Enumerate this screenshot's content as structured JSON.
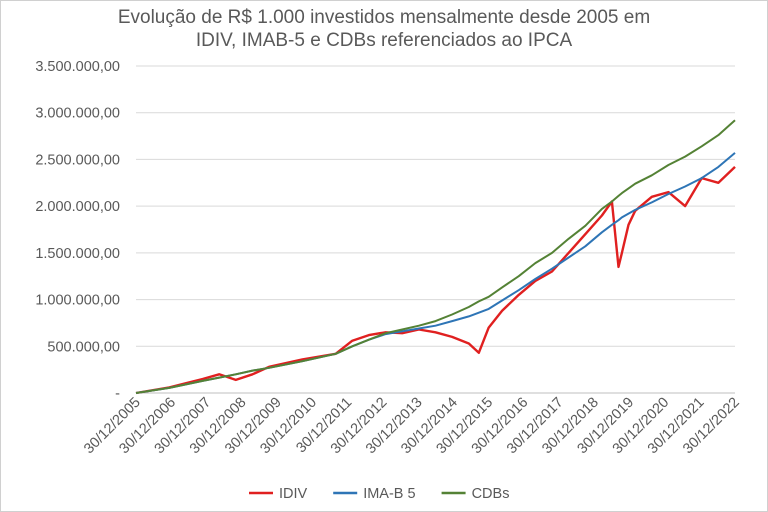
{
  "chart_data": {
    "type": "line",
    "title": [
      "Evolução de R$ 1.000 investidos mensalmente desde 2005 em",
      "IDIV, IMAB-5 e CDBs referenciados ao IPCA"
    ],
    "xlabel": "",
    "ylabel": "",
    "ylim": [
      0,
      3500000
    ],
    "y_ticks": [
      "-",
      "500.000,00",
      "1.000.000,00",
      "1.500.000,00",
      "2.000.000,00",
      "2.500.000,00",
      "3.000.000,00",
      "3.500.000,00"
    ],
    "x_ticks": [
      "30/12/2005",
      "30/12/2006",
      "30/12/2007",
      "30/12/2008",
      "30/12/2009",
      "30/12/2010",
      "30/12/2011",
      "30/12/2012",
      "30/12/2013",
      "30/12/2014",
      "30/12/2015",
      "30/12/2016",
      "30/12/2017",
      "30/12/2018",
      "30/12/2019",
      "30/12/2020",
      "30/12/2021",
      "30/12/2022"
    ],
    "grid": true,
    "legend_position": "bottom",
    "x": [
      2005.0,
      2006.0,
      2007.0,
      2007.5,
      2008.0,
      2008.5,
      2009.0,
      2010.0,
      2011.0,
      2011.5,
      2012.0,
      2012.5,
      2013.0,
      2013.5,
      2014.0,
      2014.5,
      2015.0,
      2015.3,
      2015.6,
      2016.0,
      2016.5,
      2017.0,
      2017.5,
      2018.0,
      2018.5,
      2019.0,
      2019.3,
      2019.5,
      2019.6,
      2019.8,
      2020.0,
      2020.5,
      2021.0,
      2021.5,
      2022.0,
      2022.5,
      2023.0
    ],
    "series": [
      {
        "name": "IDIV",
        "color": "#e02020",
        "values": [
          0,
          60000,
          150000,
          200000,
          140000,
          200000,
          280000,
          360000,
          420000,
          560000,
          620000,
          650000,
          640000,
          680000,
          650000,
          600000,
          530000,
          430000,
          700000,
          880000,
          1050000,
          1200000,
          1300000,
          1500000,
          1700000,
          1900000,
          2050000,
          1350000,
          1500000,
          1800000,
          1950000,
          2100000,
          2150000,
          2000000,
          2300000,
          2250000,
          2420000
        ]
      },
      {
        "name": "IMA-B 5",
        "color": "#2e75b6",
        "values": [
          0,
          55000,
          130000,
          165000,
          200000,
          240000,
          270000,
          340000,
          420000,
          500000,
          570000,
          630000,
          660000,
          690000,
          720000,
          770000,
          820000,
          860000,
          900000,
          990000,
          1100000,
          1220000,
          1330000,
          1450000,
          1570000,
          1720000,
          1800000,
          1850000,
          1880000,
          1920000,
          1960000,
          2040000,
          2130000,
          2210000,
          2300000,
          2420000,
          2570000
        ]
      },
      {
        "name": "CDBs",
        "color": "#548235",
        "values": [
          0,
          55000,
          130000,
          165000,
          200000,
          240000,
          270000,
          340000,
          420000,
          500000,
          570000,
          640000,
          680000,
          720000,
          770000,
          840000,
          920000,
          980000,
          1030000,
          1130000,
          1250000,
          1390000,
          1500000,
          1650000,
          1790000,
          1970000,
          2050000,
          2110000,
          2140000,
          2190000,
          2240000,
          2330000,
          2440000,
          2530000,
          2640000,
          2760000,
          2920000
        ]
      }
    ]
  }
}
